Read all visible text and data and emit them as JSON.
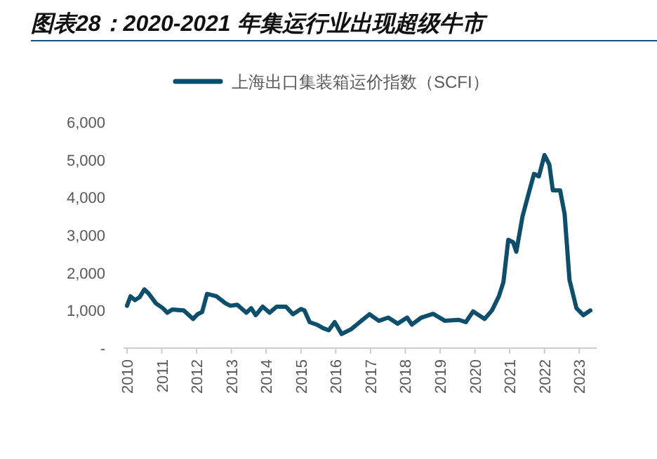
{
  "chart_data": {
    "type": "line",
    "title": "图表28：2020-2021 年集运行业出现超级牛市",
    "legend": "top",
    "grid": false,
    "line_style": "solid",
    "xlim": [
      2009.9,
      2023.5
    ],
    "xticks": [
      2010,
      2011,
      2012,
      2013,
      2014,
      2015,
      2016,
      2017,
      2018,
      2019,
      2020,
      2021,
      2022,
      2023
    ],
    "ylim": [
      0,
      6000
    ],
    "yticks": [
      {
        "value": 0,
        "label": "-"
      },
      {
        "value": 1000,
        "label": "1,000"
      },
      {
        "value": 2000,
        "label": "2,000"
      },
      {
        "value": 3000,
        "label": "3,000"
      },
      {
        "value": 4000,
        "label": "4,000"
      },
      {
        "value": 5000,
        "label": "5,000"
      },
      {
        "value": 6000,
        "label": "6,000"
      }
    ],
    "x": [
      2010.0,
      2010.1,
      2010.23,
      2010.36,
      2010.5,
      2010.63,
      2010.83,
      2011.03,
      2011.16,
      2011.3,
      2011.63,
      2011.9,
      2012.03,
      2012.16,
      2012.3,
      2012.57,
      2012.83,
      2012.97,
      2013.17,
      2013.43,
      2013.57,
      2013.7,
      2013.9,
      2014.1,
      2014.3,
      2014.57,
      2014.77,
      2015.0,
      2015.1,
      2015.25,
      2015.45,
      2015.65,
      2015.8,
      2015.97,
      2016.17,
      2016.44,
      2016.97,
      2017.24,
      2017.51,
      2017.78,
      2018.05,
      2018.19,
      2018.46,
      2018.8,
      2019.14,
      2019.54,
      2019.74,
      2019.95,
      2020.28,
      2020.49,
      2020.69,
      2020.82,
      2020.96,
      2021.1,
      2021.19,
      2021.37,
      2021.57,
      2021.7,
      2021.84,
      2022.0,
      2022.14,
      2022.24,
      2022.45,
      2022.58,
      2022.72,
      2022.92,
      2023.12,
      2023.32
    ],
    "series": [
      {
        "name": "上海出口集装箱运价指数（SCFI）",
        "color": "#0b4f6c",
        "values": [
          1125,
          1375,
          1275,
          1350,
          1560,
          1440,
          1190,
          1060,
          940,
          1025,
          1000,
          775,
          900,
          960,
          1440,
          1375,
          1190,
          1125,
          1150,
          940,
          1060,
          875,
          1100,
          940,
          1100,
          1100,
          900,
          1040,
          1000,
          690,
          625,
          525,
          475,
          690,
          375,
          500,
          900,
          725,
          810,
          650,
          810,
          625,
          810,
          910,
          725,
          750,
          690,
          975,
          775,
          1000,
          1375,
          1750,
          2875,
          2810,
          2560,
          3500,
          4190,
          4625,
          4560,
          5125,
          4875,
          4190,
          4190,
          3560,
          1810,
          1060,
          875,
          1000
        ]
      }
    ]
  }
}
